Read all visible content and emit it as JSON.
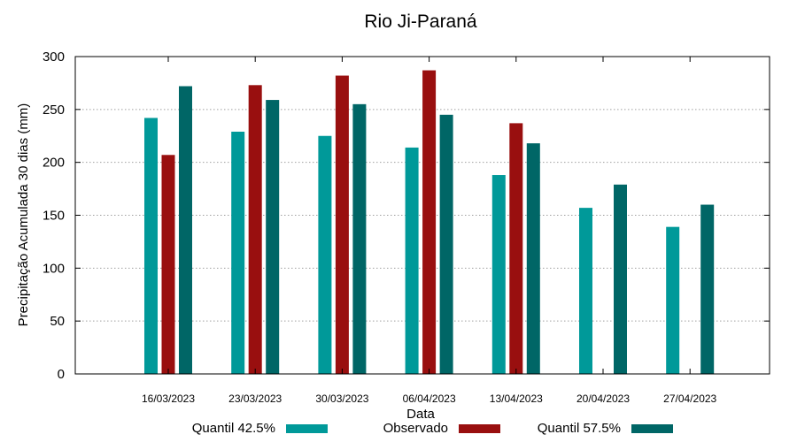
{
  "chart_data": {
    "type": "bar",
    "title": "Rio Ji-Paraná",
    "xlabel": "Data",
    "ylabel": "Precipitação Acumulada 30 dias (mm)",
    "ylim": [
      0,
      300
    ],
    "yticks": [
      0,
      50,
      100,
      150,
      200,
      250,
      300
    ],
    "grid": true,
    "categories": [
      "16/03/2023",
      "23/03/2023",
      "30/03/2023",
      "06/04/2023",
      "13/04/2023",
      "20/04/2023",
      "27/04/2023"
    ],
    "series": [
      {
        "name": "Quantil 42.5%",
        "color": "#009999",
        "values": [
          242,
          229,
          225,
          214,
          188,
          157,
          139
        ]
      },
      {
        "name": "Observado",
        "color": "#990f0f",
        "values": [
          207,
          273,
          282,
          287,
          237,
          null,
          null
        ]
      },
      {
        "name": "Quantil 57.5%",
        "color": "#006666",
        "values": [
          272,
          259,
          255,
          245,
          218,
          179,
          160
        ]
      }
    ]
  }
}
